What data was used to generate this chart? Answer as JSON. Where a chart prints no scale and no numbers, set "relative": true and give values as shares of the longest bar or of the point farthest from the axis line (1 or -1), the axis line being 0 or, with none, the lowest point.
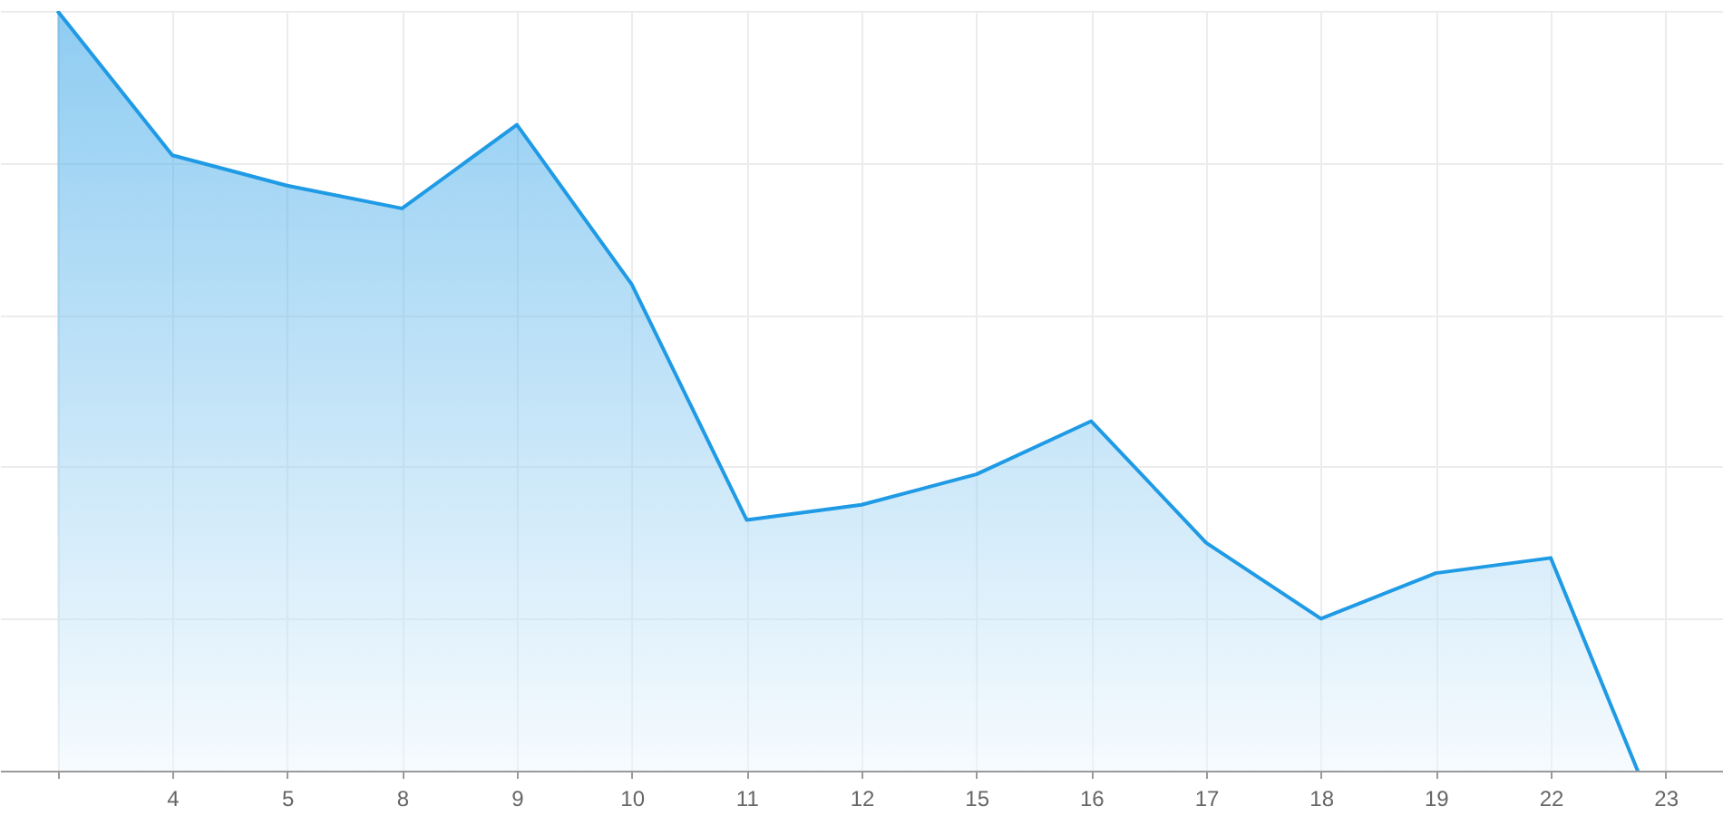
{
  "chart_data": {
    "type": "area",
    "relative": true,
    "categories": [
      null,
      "4",
      "5",
      "8",
      "9",
      "10",
      "11",
      "12",
      "15",
      "16",
      "17",
      "18",
      "19",
      "22",
      "23"
    ],
    "series": [
      {
        "color": "#1f9ae5",
        "values": [
          1,
          0.81,
          0.77,
          0.74,
          0.85,
          0.64,
          0.33,
          0.35,
          0.39,
          0.46,
          0.3,
          0.2,
          0.26,
          0.28,
          -0.09
        ]
      }
    ],
    "grid": true
  }
}
